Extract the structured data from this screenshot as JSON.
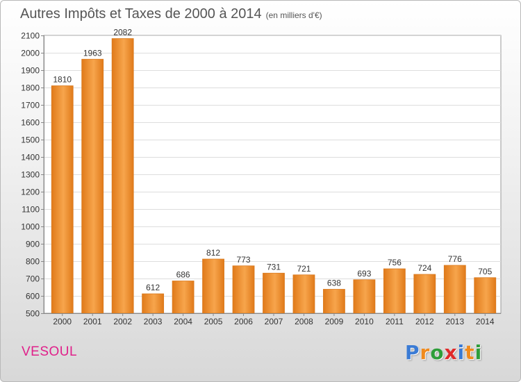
{
  "header": {
    "title": "Autres Impôts et Taxes de 2000 à 2014",
    "unit": "(en milliers d'€)"
  },
  "footer": {
    "city": "VESOUL",
    "logo_letters": [
      "P",
      "r",
      "o",
      "x",
      "i",
      "t",
      "i"
    ],
    "logo_colors": [
      "#3a7bd5",
      "#f08a1c",
      "#2e9e3a",
      "#e02a2a",
      "#3a7bd5",
      "#f08a1c",
      "#2e9e3a"
    ],
    "city_color": "#e0208a"
  },
  "chart_data": {
    "type": "bar",
    "categories": [
      "2000",
      "2001",
      "2002",
      "2003",
      "2004",
      "2005",
      "2006",
      "2007",
      "2008",
      "2009",
      "2010",
      "2011",
      "2012",
      "2013",
      "2014"
    ],
    "values": [
      1810,
      1963,
      2082,
      612,
      686,
      812,
      773,
      731,
      721,
      638,
      693,
      756,
      724,
      776,
      705
    ],
    "ylim": [
      500,
      2100
    ],
    "yticks": [
      500,
      600,
      700,
      800,
      900,
      1000,
      1100,
      1200,
      1300,
      1400,
      1500,
      1600,
      1700,
      1800,
      1900,
      2000,
      2100
    ],
    "grid": true,
    "bar_color_light": "#f7a54c",
    "bar_color_dark": "#e07a1a",
    "data_labels": true
  }
}
